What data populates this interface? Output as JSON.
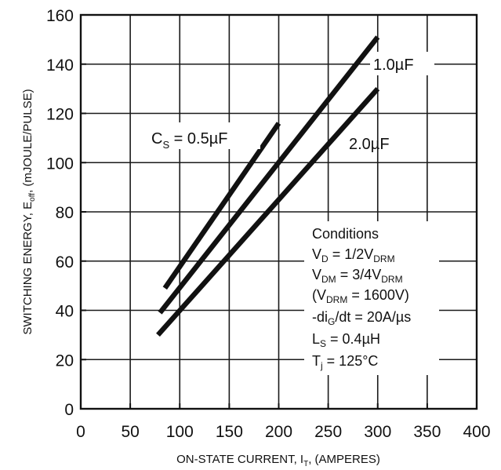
{
  "chart_data": {
    "type": "line",
    "xlabel": "ON-STATE CURRENT, I",
    "xlabel_sub": "T",
    "xlabel_suffix": ", (AMPERES)",
    "ylabel": "SWITCHING ENERGY, E",
    "ylabel_sub": "off",
    "ylabel_suffix": ", (mJOULE/PULSE)",
    "xlim": [
      0,
      400
    ],
    "ylim": [
      0,
      160
    ],
    "xticks": [
      0,
      50,
      100,
      150,
      200,
      250,
      300,
      350,
      400
    ],
    "yticks": [
      0,
      20,
      40,
      60,
      80,
      100,
      120,
      140,
      160
    ],
    "grid": true,
    "series": [
      {
        "name": "C_S = 0.5µF",
        "x": [
          85,
          200
        ],
        "y": [
          49,
          116
        ]
      },
      {
        "name": "1.0µF",
        "x": [
          80,
          300
        ],
        "y": [
          39,
          151
        ]
      },
      {
        "name": "2.0µF",
        "x": [
          78,
          300
        ],
        "y": [
          30,
          130
        ]
      }
    ],
    "annotations": {
      "s1_main": "C",
      "s1_sub": "S",
      "s1_rest": " = 0.5µF",
      "s2": "1.0µF",
      "s3": "2.0µF"
    },
    "conditions": {
      "title": "Conditions",
      "l1_a": "V",
      "l1_b": "D",
      "l1_c": " = 1/2V",
      "l1_d": "DRM",
      "l2_a": "V",
      "l2_b": "DM",
      "l2_c": " = 3/4V",
      "l2_d": "DRM",
      "l3_a": "(V",
      "l3_b": "DRM",
      "l3_c": " = 1600V)",
      "l4_a": "-di",
      "l4_b": "G",
      "l4_c": "/dt = 20A/µs",
      "l5_a": "L",
      "l5_b": "S",
      "l5_c": " = 0.4µH",
      "l6_a": "T",
      "l6_b": "j",
      "l6_c": " = 125°C"
    }
  }
}
